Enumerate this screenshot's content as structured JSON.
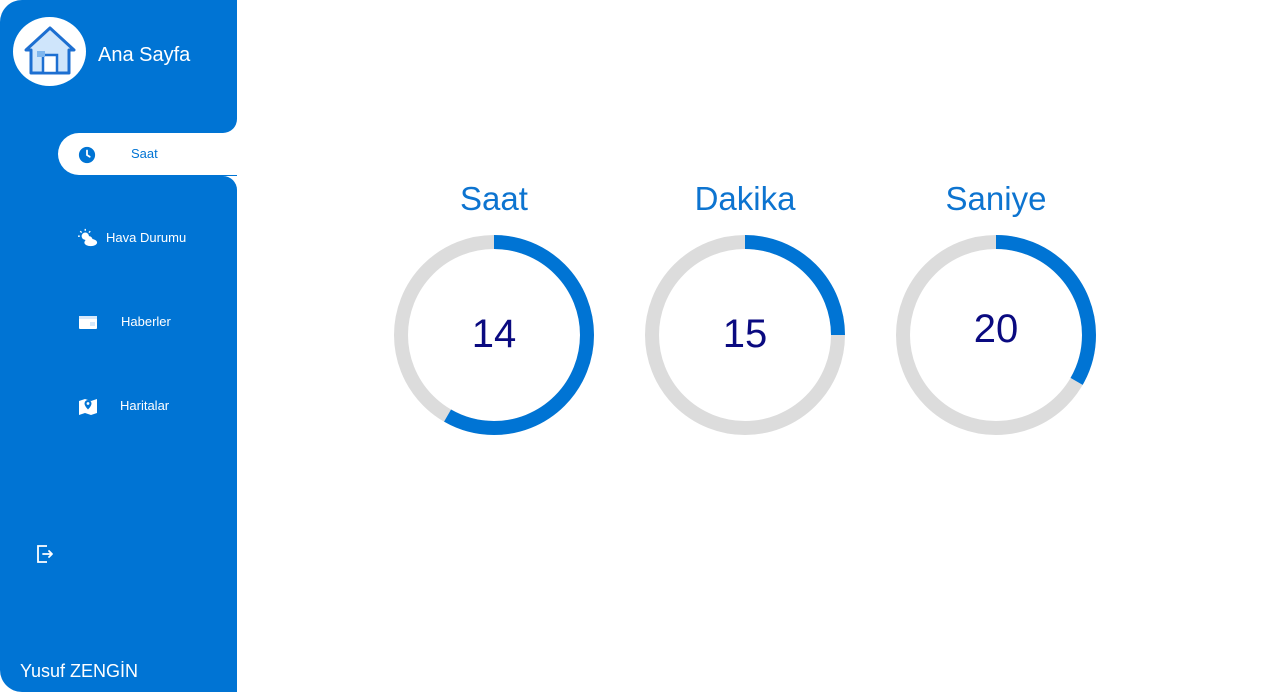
{
  "sidebar": {
    "title": "Ana Sayfa",
    "items": [
      {
        "label": "Saat",
        "icon": "clock-icon",
        "active": true
      },
      {
        "label": "Hava Durumu",
        "icon": "weather-icon",
        "active": false
      },
      {
        "label": "Haberler",
        "icon": "news-icon",
        "active": false
      },
      {
        "label": "Haritalar",
        "icon": "map-icon",
        "active": false
      }
    ],
    "exit_icon": "logout-icon",
    "user": "Yusuf ZENGİN"
  },
  "clock": {
    "hour": {
      "label": "Saat",
      "value": "14",
      "progress": 0.583
    },
    "minute": {
      "label": "Dakika",
      "value": "15",
      "progress": 0.25
    },
    "second": {
      "label": "Saniye",
      "value": "20",
      "progress": 0.333
    }
  },
  "colors": {
    "accent": "#0074d4",
    "track": "#dcdcdc",
    "value_text": "#0a0a80"
  }
}
